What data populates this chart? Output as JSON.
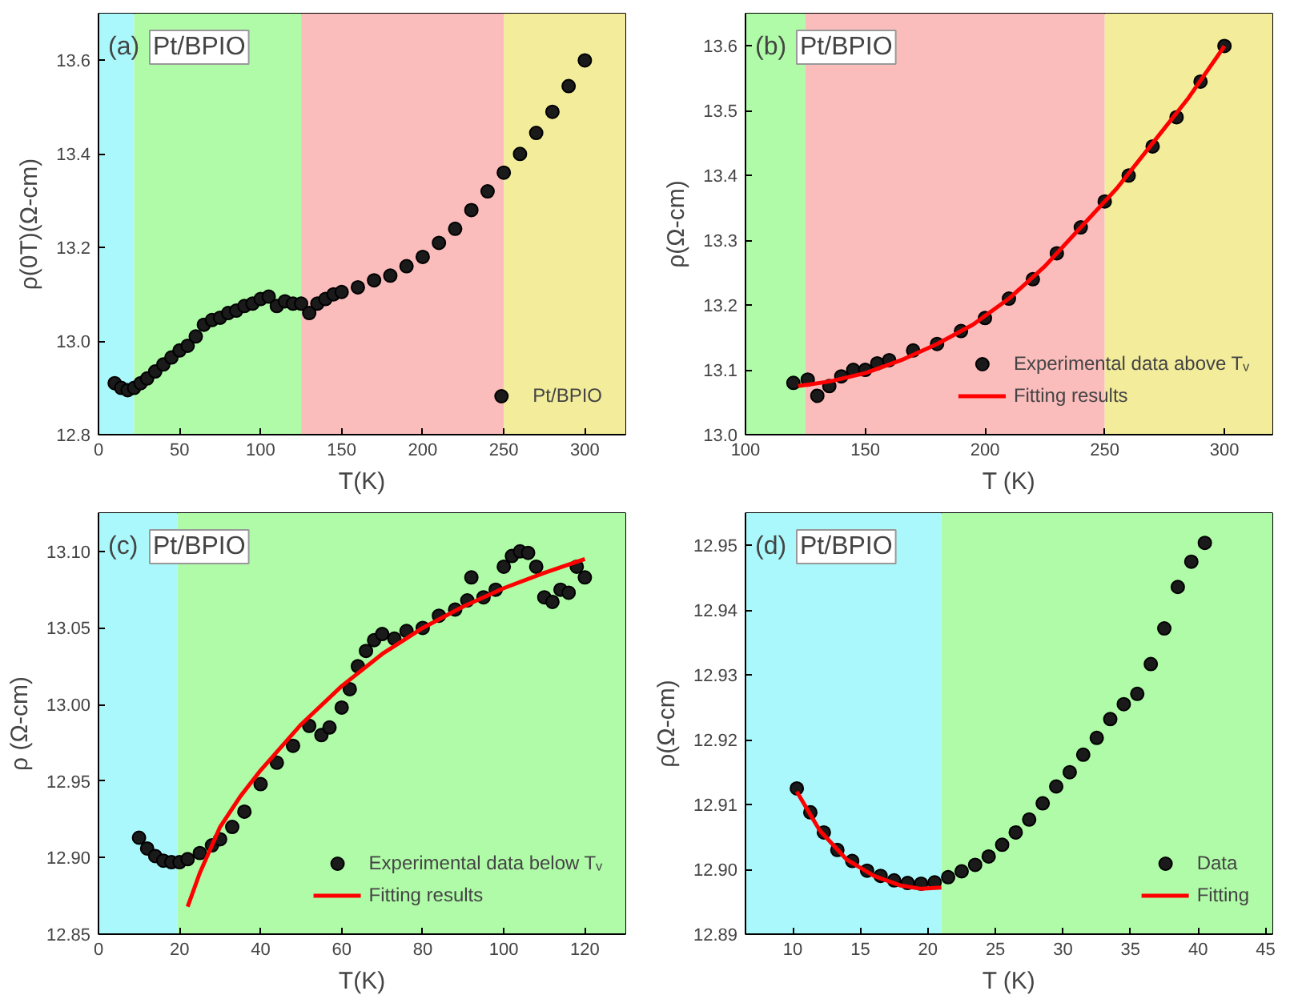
{
  "chart_data": [
    {
      "type": "scatter",
      "annotations": [
        "(a)",
        "Pt/BPIO"
      ],
      "xlabel": "T(K)",
      "ylabel": "ρ(0T)(Ω-cm)",
      "xlim": [
        0,
        325
      ],
      "ylim": [
        12.8,
        13.7
      ],
      "xticks": [
        0,
        50,
        100,
        150,
        200,
        250,
        300
      ],
      "yticks": [
        12.8,
        {
          "value": 13.0,
          "label": "13.0"
        },
        13.2,
        13.4,
        13.6
      ],
      "legend": "bottom right",
      "bands": [
        {
          "axis": "x",
          "from": 0,
          "to": 22,
          "color": "#aaf8fb"
        },
        {
          "axis": "x",
          "from": 22,
          "to": 125,
          "color": "#affba7"
        },
        {
          "axis": "x",
          "from": 125,
          "to": 250,
          "color": "#fbbcbc"
        },
        {
          "axis": "x",
          "from": 250,
          "to": 325,
          "color": "#f2ec9b"
        }
      ],
      "series": [
        {
          "name": "Pt/BPIO",
          "color": "#1a1a1a",
          "marker": "circle",
          "x": [
            10,
            14,
            18,
            22,
            26,
            30,
            35,
            40,
            45,
            50,
            55,
            60,
            65,
            70,
            75,
            80,
            85,
            90,
            95,
            100,
            105,
            110,
            115,
            120,
            125,
            130,
            135,
            140,
            145,
            150,
            160,
            170,
            180,
            190,
            200,
            210,
            220,
            230,
            240,
            250,
            260,
            270,
            280,
            290,
            300
          ],
          "values": [
            12.91,
            12.9,
            12.895,
            12.9,
            12.91,
            12.92,
            12.935,
            12.95,
            12.965,
            12.98,
            12.99,
            13.01,
            13.035,
            13.045,
            13.05,
            13.06,
            13.065,
            13.075,
            13.08,
            13.09,
            13.095,
            13.075,
            13.085,
            13.08,
            13.08,
            13.06,
            13.08,
            13.09,
            13.1,
            13.105,
            13.115,
            13.13,
            13.14,
            13.16,
            13.18,
            13.21,
            13.24,
            13.28,
            13.32,
            13.36,
            13.4,
            13.445,
            13.49,
            13.545,
            13.6
          ]
        }
      ]
    },
    {
      "type": "scatter",
      "annotations": [
        "(b)",
        "Pt/BPIO"
      ],
      "xlabel": "T (K)",
      "ylabel": "ρ(Ω-cm)",
      "xlim": [
        100,
        320
      ],
      "ylim": [
        13.0,
        13.65
      ],
      "xticks": [
        100,
        150,
        200,
        250,
        300
      ],
      "yticks": [
        {
          "value": 13.0,
          "label": "13.0"
        },
        13.1,
        13.2,
        13.3,
        13.4,
        13.5,
        13.6
      ],
      "legend": "bottom right",
      "bands": [
        {
          "axis": "x",
          "from": 100,
          "to": 125,
          "color": "#affba7"
        },
        {
          "axis": "x",
          "from": 125,
          "to": 250,
          "color": "#fbbcbc"
        },
        {
          "axis": "x",
          "from": 250,
          "to": 320,
          "color": "#f2ec9b"
        }
      ],
      "series": [
        {
          "name": "Experimental data above Tᵥ",
          "color": "#1a1a1a",
          "marker": "circle",
          "x": [
            120,
            126,
            130,
            135,
            140,
            145,
            150,
            155,
            160,
            170,
            180,
            190,
            200,
            210,
            220,
            230,
            240,
            250,
            260,
            270,
            280,
            290,
            300
          ],
          "values": [
            13.08,
            13.085,
            13.06,
            13.075,
            13.09,
            13.1,
            13.1,
            13.11,
            13.115,
            13.13,
            13.14,
            13.16,
            13.18,
            13.21,
            13.24,
            13.28,
            13.32,
            13.36,
            13.4,
            13.445,
            13.49,
            13.545,
            13.6
          ]
        },
        {
          "type": "line",
          "name": "Fitting results",
          "color": "#ff0000",
          "x": [
            122,
            135,
            150,
            165,
            180,
            195,
            210,
            225,
            240,
            255,
            270,
            285,
            300
          ],
          "values": [
            13.075,
            13.082,
            13.095,
            13.115,
            13.14,
            13.17,
            13.21,
            13.26,
            13.32,
            13.38,
            13.45,
            13.52,
            13.6
          ]
        }
      ]
    },
    {
      "type": "scatter",
      "annotations": [
        "(c)",
        "Pt/BPIO"
      ],
      "xlabel": "T(K)",
      "ylabel": "ρ (Ω-cm)",
      "xlim": [
        0,
        130
      ],
      "ylim": [
        12.85,
        13.125
      ],
      "xticks": [
        0,
        20,
        40,
        60,
        80,
        100,
        120
      ],
      "yticks": [
        {
          "value": 12.85,
          "label": "12.85"
        },
        {
          "value": 12.9,
          "label": "12.90"
        },
        {
          "value": 12.95,
          "label": "12.95"
        },
        {
          "value": 13.0,
          "label": "13.00"
        },
        {
          "value": 13.05,
          "label": "13.05"
        },
        {
          "value": 13.1,
          "label": "13.10"
        }
      ],
      "legend": "bottom right",
      "bands": [
        {
          "axis": "x",
          "from": 0,
          "to": 19.5,
          "color": "#aaf8fb"
        },
        {
          "axis": "x",
          "from": 19.5,
          "to": 130,
          "color": "#affba7"
        }
      ],
      "series": [
        {
          "name": "Experimental data below Tᵥ",
          "color": "#1a1a1a",
          "marker": "circle",
          "x": [
            10,
            12,
            14,
            16,
            18,
            20,
            22,
            25,
            28,
            30,
            33,
            36,
            40,
            44,
            48,
            52,
            55,
            57,
            60,
            62,
            64,
            66,
            68,
            70,
            73,
            76,
            80,
            84,
            88,
            91,
            92,
            95,
            98,
            100,
            102,
            104,
            106,
            108,
            110,
            112,
            114,
            116,
            118,
            120
          ],
          "values": [
            12.913,
            12.906,
            12.901,
            12.898,
            12.897,
            12.897,
            12.899,
            12.903,
            12.908,
            12.912,
            12.92,
            12.93,
            12.948,
            12.962,
            12.973,
            12.986,
            12.98,
            12.985,
            12.998,
            13.01,
            13.025,
            13.035,
            13.042,
            13.046,
            13.043,
            13.048,
            13.05,
            13.058,
            13.062,
            13.068,
            13.083,
            13.07,
            13.075,
            13.09,
            13.097,
            13.1,
            13.099,
            13.09,
            13.07,
            13.067,
            13.075,
            13.073,
            13.09,
            13.083
          ]
        },
        {
          "type": "line",
          "name": "Fitting results",
          "color": "#ff0000",
          "x": [
            22,
            25,
            30,
            35,
            40,
            50,
            60,
            70,
            80,
            90,
            100,
            110,
            120
          ],
          "values": [
            12.868,
            12.89,
            12.92,
            12.94,
            12.957,
            12.987,
            13.012,
            13.033,
            13.05,
            13.064,
            13.076,
            13.086,
            13.095
          ]
        }
      ]
    },
    {
      "type": "scatter",
      "annotations": [
        "(d)",
        "Pt/BPIO"
      ],
      "xlabel": "T (K)",
      "ylabel": "ρ(Ω-cm)",
      "xlim": [
        6.5,
        45.5
      ],
      "ylim": [
        12.89,
        12.955
      ],
      "xticks": [
        10,
        15,
        20,
        25,
        30,
        35,
        40,
        45
      ],
      "yticks": [
        12.89,
        {
          "value": 12.9,
          "label": "12.90"
        },
        12.91,
        12.92,
        12.93,
        12.94,
        12.95
      ],
      "legend": "bottom right",
      "bands": [
        {
          "axis": "x",
          "from": 6.5,
          "to": 21,
          "color": "#aaf8fb"
        },
        {
          "axis": "x",
          "from": 21,
          "to": 45.5,
          "color": "#affba7"
        }
      ],
      "series": [
        {
          "name": "Data",
          "color": "#1a1a1a",
          "marker": "circle",
          "x": [
            10.3,
            11.3,
            12.3,
            13.3,
            14.4,
            15.5,
            16.5,
            17.5,
            18.5,
            19.5,
            20.5,
            21.5,
            22.5,
            23.5,
            24.5,
            25.5,
            26.5,
            27.5,
            28.5,
            29.5,
            30.5,
            31.5,
            32.5,
            33.5,
            34.5,
            35.5,
            36.5,
            37.5,
            38.5,
            39.5,
            40.5
          ],
          "values": [
            12.9125,
            12.9088,
            12.9057,
            12.903,
            12.9013,
            12.8998,
            12.899,
            12.8983,
            12.8979,
            12.8978,
            12.898,
            12.8988,
            12.8997,
            12.9007,
            12.902,
            12.9038,
            12.9057,
            12.9077,
            12.9102,
            12.9128,
            12.915,
            12.9177,
            12.9203,
            12.9232,
            12.9255,
            12.9271,
            12.9317,
            12.9372,
            12.9436,
            12.9475,
            12.9504
          ]
        },
        {
          "type": "line",
          "name": "Fitting",
          "color": "#ff0000",
          "x": [
            10.3,
            12,
            14,
            16,
            18,
            19.5,
            21
          ],
          "values": [
            12.912,
            12.906,
            12.9015,
            12.899,
            12.8975,
            12.897,
            12.8972
          ]
        }
      ]
    }
  ]
}
